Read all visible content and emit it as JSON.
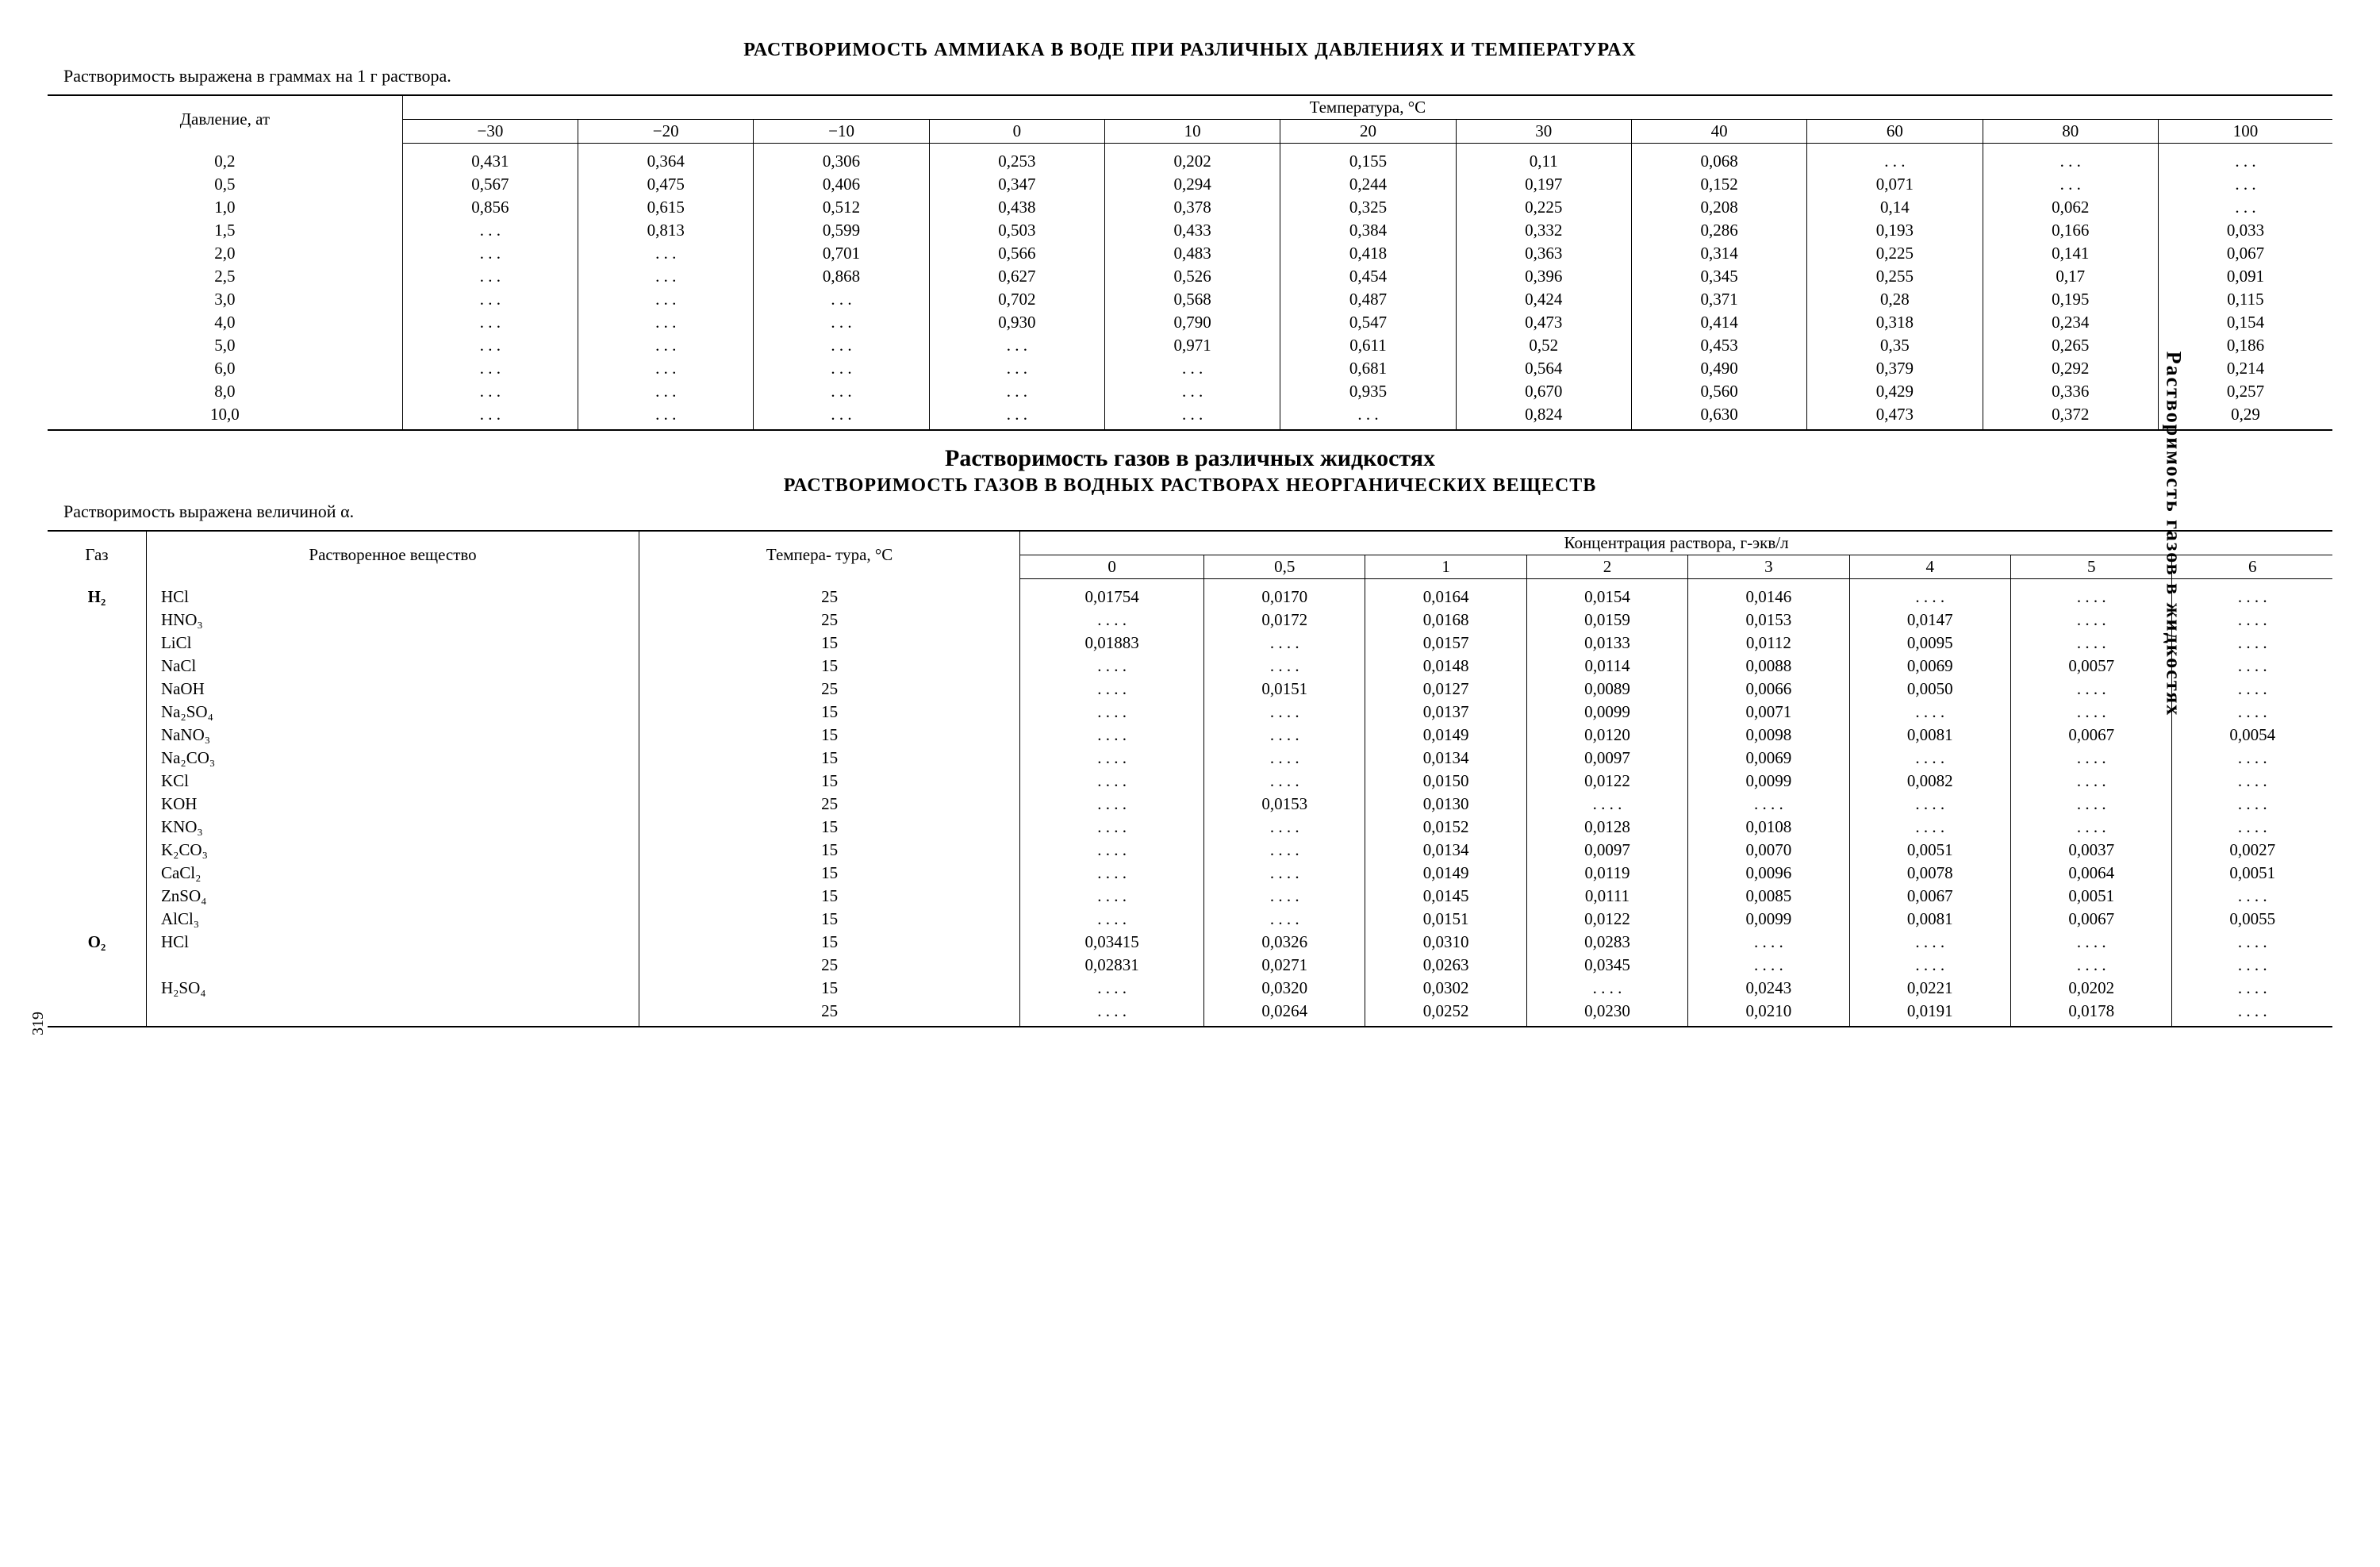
{
  "side_label": "Растворимость газов в жидкостях",
  "page_number": "319",
  "table1": {
    "title": "РАСТВОРИМОСТЬ АММИАКА В ВОДЕ ПРИ РАЗЛИЧНЫХ ДАВЛЕНИЯХ И ТЕМПЕРАТУРАХ",
    "note": "Растворимость выражена в граммах на 1 г раствора.",
    "row_header": "Давление,\nат",
    "group_header": "Температура, °С",
    "columns": [
      "−30",
      "−20",
      "−10",
      "0",
      "10",
      "20",
      "30",
      "40",
      "60",
      "80",
      "100"
    ],
    "rows": [
      {
        "p": "0,2",
        "v": [
          "0,431",
          "0,364",
          "0,306",
          "0,253",
          "0,202",
          "0,155",
          "0,11",
          "0,068",
          ". . .",
          ". . .",
          ". . ."
        ]
      },
      {
        "p": "0,5",
        "v": [
          "0,567",
          "0,475",
          "0,406",
          "0,347",
          "0,294",
          "0,244",
          "0,197",
          "0,152",
          "0,071",
          ". . .",
          ". . ."
        ]
      },
      {
        "p": "1,0",
        "v": [
          "0,856",
          "0,615",
          "0,512",
          "0,438",
          "0,378",
          "0,325",
          "0,225",
          "0,208",
          "0,14",
          "0,062",
          ". . ."
        ]
      },
      {
        "p": "1,5",
        "v": [
          ". . .",
          "0,813",
          "0,599",
          "0,503",
          "0,433",
          "0,384",
          "0,332",
          "0,286",
          "0,193",
          "0,166",
          "0,033"
        ]
      },
      {
        "p": "2,0",
        "v": [
          ". . .",
          ". . .",
          "0,701",
          "0,566",
          "0,483",
          "0,418",
          "0,363",
          "0,314",
          "0,225",
          "0,141",
          "0,067"
        ]
      },
      {
        "p": "2,5",
        "v": [
          ". . .",
          ". . .",
          "0,868",
          "0,627",
          "0,526",
          "0,454",
          "0,396",
          "0,345",
          "0,255",
          "0,17",
          "0,091"
        ]
      },
      {
        "p": "3,0",
        "v": [
          ". . .",
          ". . .",
          ". . .",
          "0,702",
          "0,568",
          "0,487",
          "0,424",
          "0,371",
          "0,28",
          "0,195",
          "0,115"
        ]
      },
      {
        "p": "4,0",
        "v": [
          ". . .",
          ". . .",
          ". . .",
          "0,930",
          "0,790",
          "0,547",
          "0,473",
          "0,414",
          "0,318",
          "0,234",
          "0,154"
        ]
      },
      {
        "p": "5,0",
        "v": [
          ". . .",
          ". . .",
          ". . .",
          ". . .",
          "0,971",
          "0,611",
          "0,52",
          "0,453",
          "0,35",
          "0,265",
          "0,186"
        ]
      },
      {
        "p": "6,0",
        "v": [
          ". . .",
          ". . .",
          ". . .",
          ". . .",
          ". . .",
          "0,681",
          "0,564",
          "0,490",
          "0,379",
          "0,292",
          "0,214"
        ]
      },
      {
        "p": "8,0",
        "v": [
          ". . .",
          ". . .",
          ". . .",
          ". . .",
          ". . .",
          "0,935",
          "0,670",
          "0,560",
          "0,429",
          "0,336",
          "0,257"
        ]
      },
      {
        "p": "10,0",
        "v": [
          ". . .",
          ". . .",
          ". . .",
          ". . .",
          ". . .",
          ". . .",
          "0,824",
          "0,630",
          "0,473",
          "0,372",
          "0,29"
        ]
      }
    ]
  },
  "table2": {
    "section_title": "Растворимость газов в различных жидкостях",
    "title": "РАСТВОРИМОСТЬ ГАЗОВ В ВОДНЫХ РАСТВОРАХ НЕОРГАНИЧЕСКИХ ВЕЩЕСТВ",
    "note": "Растворимость выражена величиной α.",
    "col_gas": "Газ",
    "col_solute": "Растворенное вещество",
    "col_temp": "Темпера-\nтура, °С",
    "group_header": "Концентрация раствора, г-экв/л",
    "columns": [
      "0",
      "0,5",
      "1",
      "2",
      "3",
      "4",
      "5",
      "6"
    ],
    "rows": [
      {
        "gas": "H₂",
        "solute": "HCl",
        "t": "25",
        "v": [
          "0,01754",
          "0,0170",
          "0,0164",
          "0,0154",
          "0,0146",
          ". . . .",
          ". . . .",
          ". . . ."
        ]
      },
      {
        "gas": "",
        "solute": "HNO₃",
        "t": "25",
        "v": [
          ". . . .",
          "0,0172",
          "0,0168",
          "0,0159",
          "0,0153",
          "0,0147",
          ". . . .",
          ". . . ."
        ]
      },
      {
        "gas": "",
        "solute": "LiCl",
        "t": "15",
        "v": [
          "0,01883",
          ". . . .",
          "0,0157",
          "0,0133",
          "0,0112",
          "0,0095",
          ". . . .",
          ". . . ."
        ]
      },
      {
        "gas": "",
        "solute": "NaCl",
        "t": "15",
        "v": [
          ". . . .",
          ". . . .",
          "0,0148",
          "0,0114",
          "0,0088",
          "0,0069",
          "0,0057",
          ". . . ."
        ]
      },
      {
        "gas": "",
        "solute": "NaOH",
        "t": "25",
        "v": [
          ". . . .",
          "0,0151",
          "0,0127",
          "0,0089",
          "0,0066",
          "0,0050",
          ". . . .",
          ". . . ."
        ]
      },
      {
        "gas": "",
        "solute": "Na₂SO₄",
        "t": "15",
        "v": [
          ". . . .",
          ". . . .",
          "0,0137",
          "0,0099",
          "0,0071",
          ". . . .",
          ". . . .",
          ". . . ."
        ]
      },
      {
        "gas": "",
        "solute": "NaNO₃",
        "t": "15",
        "v": [
          ". . . .",
          ". . . .",
          "0,0149",
          "0,0120",
          "0,0098",
          "0,0081",
          "0,0067",
          "0,0054"
        ]
      },
      {
        "gas": "",
        "solute": "Na₂CO₃",
        "t": "15",
        "v": [
          ". . . .",
          ". . . .",
          "0,0134",
          "0,0097",
          "0,0069",
          ". . . .",
          ". . . .",
          ". . . ."
        ]
      },
      {
        "gas": "",
        "solute": "KCl",
        "t": "15",
        "v": [
          ". . . .",
          ". . . .",
          "0,0150",
          "0,0122",
          "0,0099",
          "0,0082",
          ". . . .",
          ". . . ."
        ]
      },
      {
        "gas": "",
        "solute": "KOH",
        "t": "25",
        "v": [
          ". . . .",
          "0,0153",
          "0,0130",
          ". . . .",
          ". . . .",
          ". . . .",
          ". . . .",
          ". . . ."
        ]
      },
      {
        "gas": "",
        "solute": "KNO₃",
        "t": "15",
        "v": [
          ". . . .",
          ". . . .",
          "0,0152",
          "0,0128",
          "0,0108",
          ". . . .",
          ". . . .",
          ". . . ."
        ]
      },
      {
        "gas": "",
        "solute": "K₂CO₃",
        "t": "15",
        "v": [
          ". . . .",
          ". . . .",
          "0,0134",
          "0,0097",
          "0,0070",
          "0,0051",
          "0,0037",
          "0,0027"
        ]
      },
      {
        "gas": "",
        "solute": "CaCl₂",
        "t": "15",
        "v": [
          ". . . .",
          ". . . .",
          "0,0149",
          "0,0119",
          "0,0096",
          "0,0078",
          "0,0064",
          "0,0051"
        ]
      },
      {
        "gas": "",
        "solute": "ZnSO₄",
        "t": "15",
        "v": [
          ". . . .",
          ". . . .",
          "0,0145",
          "0,0111",
          "0,0085",
          "0,0067",
          "0,0051",
          ". . . ."
        ]
      },
      {
        "gas": "",
        "solute": "AlCl₃",
        "t": "15",
        "v": [
          ". . . .",
          ". . . .",
          "0,0151",
          "0,0122",
          "0,0099",
          "0,0081",
          "0,0067",
          "0,0055"
        ]
      },
      {
        "gas": "O₂",
        "solute": "HCl",
        "t": "15",
        "v": [
          "0,03415",
          "0,0326",
          "0,0310",
          "0,0283",
          ". . . .",
          ". . . .",
          ". . . .",
          ". . . ."
        ]
      },
      {
        "gas": "",
        "solute": "",
        "t": "25",
        "v": [
          "0,02831",
          "0,0271",
          "0,0263",
          "0,0345",
          ". . . .",
          ". . . .",
          ". . . .",
          ". . . ."
        ]
      },
      {
        "gas": "",
        "solute": "H₂SO₄",
        "t": "15",
        "v": [
          ". . . .",
          "0,0320",
          "0,0302",
          ". . . .",
          "0,0243",
          "0,0221",
          "0,0202",
          ". . . ."
        ]
      },
      {
        "gas": "",
        "solute": "",
        "t": "25",
        "v": [
          ". . . .",
          "0,0264",
          "0,0252",
          "0,0230",
          "0,0210",
          "0,0191",
          "0,0178",
          ". . . ."
        ]
      }
    ]
  }
}
